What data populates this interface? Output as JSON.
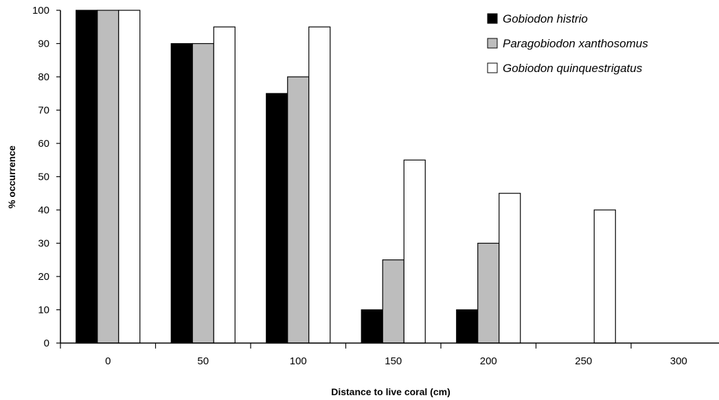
{
  "chart_data": {
    "type": "bar",
    "title": "",
    "xlabel": "Distance to live coral (cm)",
    "ylabel": "% occurrence",
    "categories": [
      "0",
      "50",
      "100",
      "150",
      "200",
      "250",
      "300"
    ],
    "ylim": [
      0,
      100
    ],
    "yticks": [
      "0",
      "10",
      "20",
      "30",
      "40",
      "50",
      "60",
      "70",
      "80",
      "90",
      "100"
    ],
    "grid": false,
    "legend_position": "top-right",
    "series": [
      {
        "name": "Gobiodon histrio",
        "color": "#000000",
        "values": [
          100,
          90,
          75,
          10,
          10,
          0,
          0
        ]
      },
      {
        "name": "Paragobiodon xanthosomus",
        "color": "#bdbdbd",
        "values": [
          100,
          90,
          80,
          25,
          30,
          0,
          0
        ]
      },
      {
        "name": "Gobiodon quinquestrigatus",
        "color": "#ffffff",
        "values": [
          100,
          95,
          95,
          55,
          45,
          40,
          0
        ]
      }
    ]
  }
}
